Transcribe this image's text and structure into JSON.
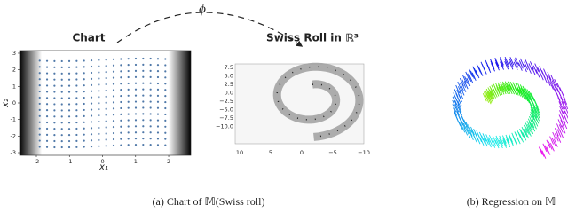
{
  "panel_a": {
    "arc_label": "ϕ",
    "chart": {
      "title": "Chart",
      "xlabel": "x₁",
      "ylabel": "x₂",
      "xlim": [
        -2.51,
        2.67
      ],
      "ylim": [
        -3.16,
        3.16
      ],
      "xticks": [
        -2,
        -1,
        0,
        1,
        2
      ],
      "yticks": [
        3,
        2,
        1,
        0,
        -1,
        -2,
        -3
      ]
    },
    "swiss_roll": {
      "title": "Swiss Roll in ℝ³",
      "vertical_ticks": [
        "7.5",
        "5.0",
        "2.5",
        "0.0",
        "−2.5",
        "−5.0",
        "−7.5",
        "−10.0"
      ],
      "bottom_ticks": [
        "10",
        "5",
        "0",
        "−5",
        "−10"
      ]
    },
    "caption": "(a) Chart of 𝕄(Swiss roll)"
  },
  "panel_b": {
    "caption": "(b) Regression on 𝕄"
  }
}
